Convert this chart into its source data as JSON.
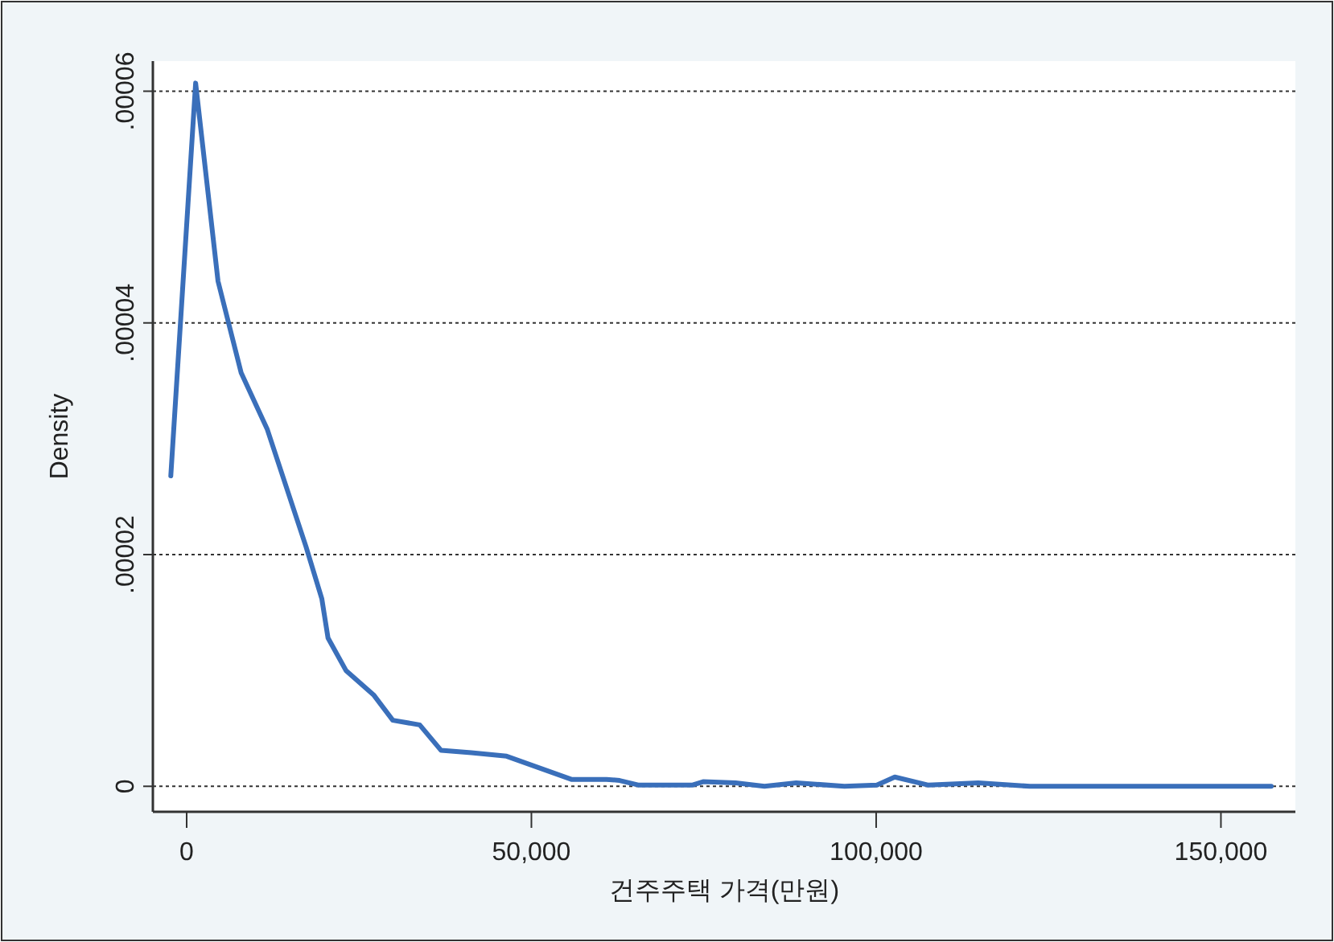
{
  "chart_data": {
    "type": "line",
    "xlabel": "건주주택 가격(만원)",
    "ylabel": "Density",
    "x": [
      -2300,
      1300,
      4550,
      7900,
      11700,
      17300,
      19600,
      20500,
      23100,
      27100,
      29900,
      33800,
      36900,
      41300,
      46400,
      55800,
      60900,
      62800,
      65600,
      73300,
      74900,
      79600,
      83800,
      88400,
      95400,
      100100,
      102700,
      107600,
      114800,
      122300,
      157300
    ],
    "series": [
      {
        "color": "#3a6fba",
        "values": [
          2.68e-05,
          6.07e-05,
          4.36e-05,
          3.57e-05,
          3.08e-05,
          2.07e-05,
          1.62e-05,
          1.28e-05,
          1e-05,
          7.9e-06,
          5.7e-06,
          5.3e-06,
          3.1e-06,
          2.9e-06,
          2.6e-06,
          6e-07,
          6e-07,
          5e-07,
          1e-07,
          1e-07,
          4e-07,
          3e-07,
          0,
          3e-07,
          0,
          1e-07,
          8e-07,
          1e-07,
          3e-07,
          0,
          0
        ]
      }
    ],
    "xlim": [
      -4900,
      160800
    ],
    "ylim": [
      -2.2e-06,
      6.26e-05
    ],
    "xticks": [
      0,
      {
        "value": 50000,
        "label": "50,000"
      },
      {
        "value": 100000,
        "label": "100,000"
      },
      {
        "value": 150000,
        "label": "150,000"
      }
    ],
    "yticks": [
      0,
      {
        "value": 2e-05,
        "label": ".00002"
      },
      {
        "value": 4e-05,
        "label": ".00004"
      },
      {
        "value": 6e-05,
        "label": ".00006"
      }
    ],
    "grid": "y"
  }
}
